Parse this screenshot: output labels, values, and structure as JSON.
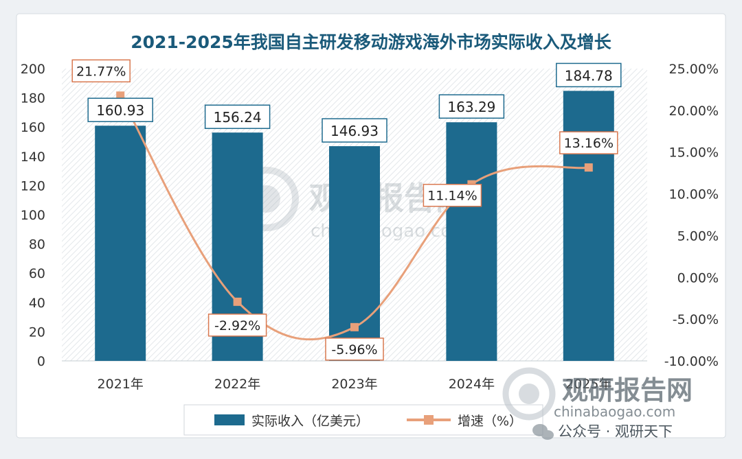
{
  "chart_data": {
    "type": "bar",
    "title": "2021-2025年我国自主研发移动游戏海外市场实际收入及增长",
    "categories": [
      "2021年",
      "2022年",
      "2023年",
      "2024年",
      "2025年"
    ],
    "series": [
      {
        "name": "实际收入（亿美元）",
        "type": "bar",
        "axis": "left",
        "values": [
          160.93,
          156.24,
          146.93,
          163.29,
          184.78
        ],
        "labels": [
          "160.93",
          "156.24",
          "146.93",
          "163.29",
          "184.78"
        ]
      },
      {
        "name": "增速（%）",
        "type": "line",
        "axis": "right",
        "values": [
          21.77,
          -2.92,
          -5.96,
          11.14,
          13.16
        ],
        "labels": [
          "21.77%",
          "-2.92%",
          "-5.96%",
          "11.14%",
          "13.16%"
        ]
      }
    ],
    "y_left": {
      "min": 0,
      "max": 200,
      "ticks": [
        "0",
        "20",
        "40",
        "60",
        "80",
        "100",
        "120",
        "140",
        "160",
        "180",
        "200"
      ]
    },
    "y_right": {
      "min": -10,
      "max": 25,
      "ticks": [
        "-10.00%",
        "-5.00%",
        "0.00%",
        "5.00%",
        "10.00%",
        "15.00%",
        "20.00%",
        "25.00%"
      ]
    },
    "legend_position": "bottom",
    "grid": false
  },
  "watermarks": {
    "center_cn": "观研报告网",
    "center_url": "chinabaogao.com",
    "corner_cn": "观研报告网",
    "corner_url": "chinabaogao.com",
    "footer": "公众号 · 观研天下"
  },
  "colors": {
    "bar": "#1d6a8e",
    "line": "#e8a07a",
    "title": "#1a5a7a",
    "label_border": "#1d6a8e",
    "pct_border": "#d9784f"
  }
}
